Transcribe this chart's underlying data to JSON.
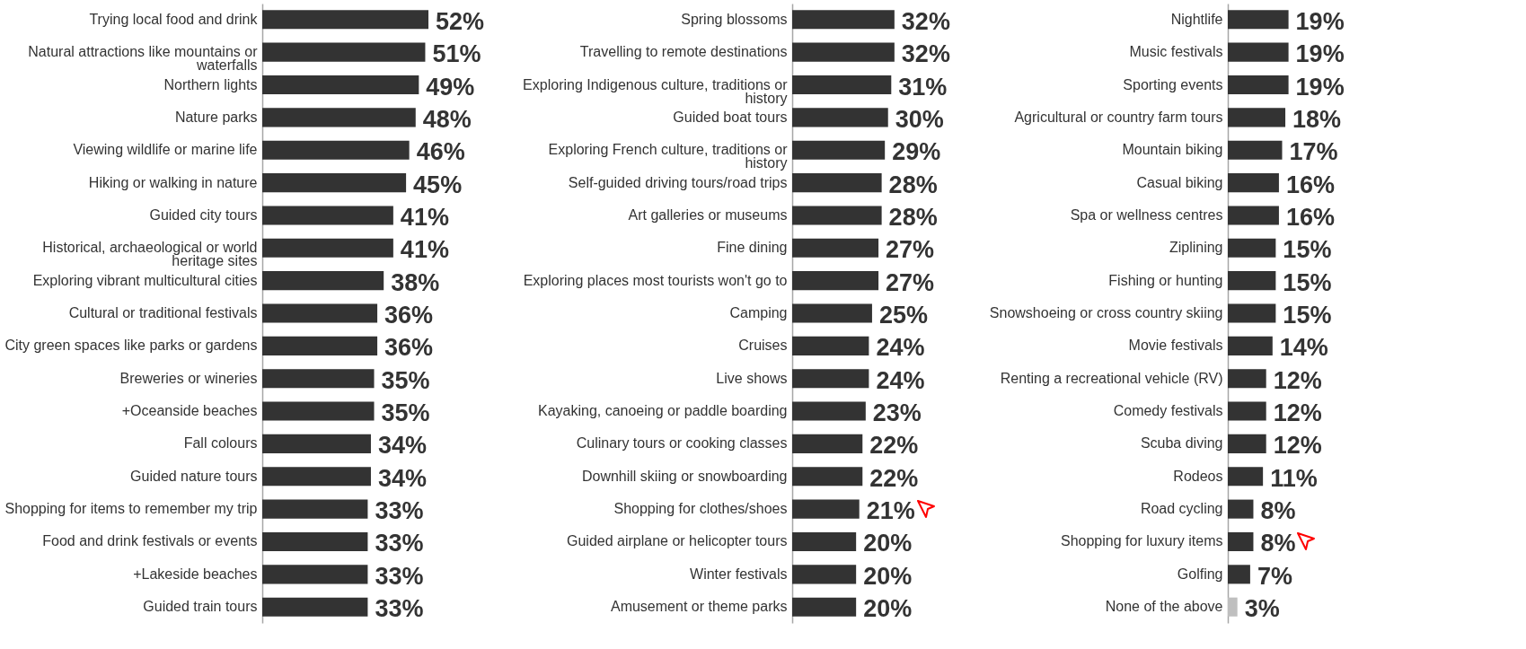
{
  "chart_data": [
    {
      "type": "bar",
      "orientation": "horizontal",
      "categories": [
        "Trying local food and drink",
        "Natural attractions like mountains or waterfalls",
        "Northern lights",
        "Nature parks",
        "Viewing wildlife or marine life",
        "Hiking or walking in nature",
        "Guided city tours",
        "Historical, archaeological or world heritage sites",
        "Exploring vibrant multicultural cities",
        "Cultural or traditional festivals",
        "City green spaces like parks or gardens",
        "Breweries or wineries",
        "+Oceanside beaches",
        "Fall colours",
        "Guided nature tours",
        "Shopping for items to remember my trip",
        "Food and drink festivals or events",
        "+Lakeside beaches",
        "Guided train tours"
      ],
      "values": [
        52,
        51,
        49,
        48,
        46,
        45,
        41,
        41,
        38,
        36,
        36,
        35,
        35,
        34,
        34,
        33,
        33,
        33,
        33
      ],
      "value_labels": [
        "52%",
        "51%",
        "49%",
        "48%",
        "46%",
        "45%",
        "41%",
        "41%",
        "38%",
        "36%",
        "36%",
        "35%",
        "35%",
        "34%",
        "34%",
        "33%",
        "33%",
        "33%",
        "33%"
      ],
      "colors": [
        "#333333",
        "#333333",
        "#333333",
        "#333333",
        "#333333",
        "#333333",
        "#333333",
        "#333333",
        "#333333",
        "#333333",
        "#333333",
        "#333333",
        "#333333",
        "#333333",
        "#333333",
        "#333333",
        "#333333",
        "#333333",
        "#333333"
      ]
    },
    {
      "type": "bar",
      "orientation": "horizontal",
      "categories": [
        "Spring blossoms",
        "Travelling to remote destinations",
        "Exploring Indigenous culture, traditions or history",
        "Guided boat tours",
        "Exploring French culture, traditions or history",
        "Self-guided driving tours/road trips",
        "Art galleries or museums",
        "Fine dining",
        "Exploring places most tourists won't go to",
        "Camping",
        "Cruises",
        "Live shows",
        "Kayaking,  canoeing or paddle boarding",
        "Culinary tours or cooking classes",
        "Downhill skiing or snowboarding",
        "Shopping for clothes/shoes",
        "Guided airplane or helicopter tours",
        "Winter festivals",
        "Amusement or theme parks"
      ],
      "values": [
        32,
        32,
        31,
        30,
        29,
        28,
        28,
        27,
        27,
        25,
        24,
        24,
        23,
        22,
        22,
        21,
        20,
        20,
        20
      ],
      "value_labels": [
        "32%",
        "32%",
        "31%",
        "30%",
        "29%",
        "28%",
        "28%",
        "27%",
        "27%",
        "25%",
        "24%",
        "24%",
        "23%",
        "22%",
        "22%",
        "21%",
        "20%",
        "20%",
        "20%"
      ],
      "colors": [
        "#333333",
        "#333333",
        "#333333",
        "#333333",
        "#333333",
        "#333333",
        "#333333",
        "#333333",
        "#333333",
        "#333333",
        "#333333",
        "#333333",
        "#333333",
        "#333333",
        "#333333",
        "#333333",
        "#333333",
        "#333333",
        "#333333"
      ]
    },
    {
      "type": "bar",
      "orientation": "horizontal",
      "categories": [
        "Nightlife",
        "Music festivals",
        "Sporting events",
        "Agricultural or country farm tours",
        "Mountain biking",
        "Casual biking",
        "Spa or wellness centres",
        "Ziplining",
        "Fishing or hunting",
        "Snowshoeing or cross country skiing",
        "Movie festivals",
        "Renting a recreational vehicle (RV)",
        "Comedy festivals",
        "Scuba diving",
        "Rodeos",
        "Road cycling",
        "Shopping for luxury items",
        "Golfing",
        "None of the above"
      ],
      "values": [
        19,
        19,
        19,
        18,
        17,
        16,
        16,
        15,
        15,
        15,
        14,
        12,
        12,
        12,
        11,
        8,
        8,
        7,
        3
      ],
      "value_labels": [
        "19%",
        "19%",
        "19%",
        "18%",
        "17%",
        "16%",
        "16%",
        "15%",
        "15%",
        "15%",
        "14%",
        "12%",
        "12%",
        "12%",
        "11%",
        "8%",
        "8%",
        "7%",
        "3%"
      ],
      "colors": [
        "#333333",
        "#333333",
        "#333333",
        "#333333",
        "#333333",
        "#333333",
        "#333333",
        "#333333",
        "#333333",
        "#333333",
        "#333333",
        "#333333",
        "#333333",
        "#333333",
        "#333333",
        "#333333",
        "#333333",
        "#333333",
        "#bfbfbf"
      ]
    }
  ]
}
